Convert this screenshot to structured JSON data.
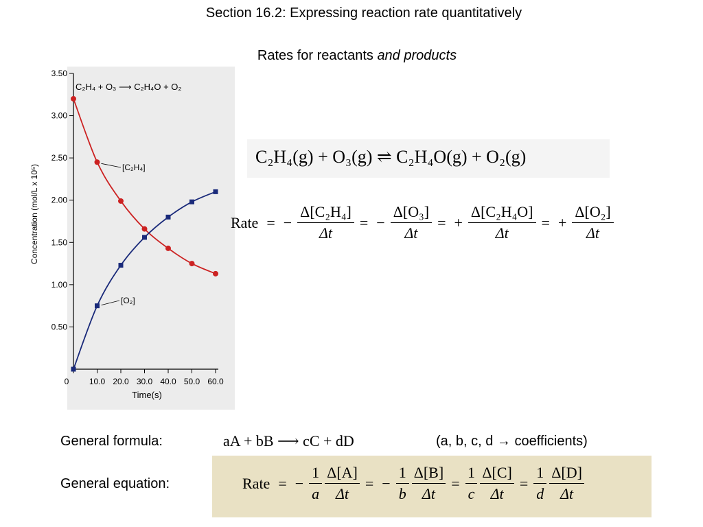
{
  "slide": {
    "title": "Section 16.2:  Expressing reaction rate quantitatively",
    "subtitle_plain": "Rates for reactants ",
    "subtitle_italic": "and products"
  },
  "chart_data": {
    "type": "line",
    "reaction_label": "C₂H₄ + O₃ ⟶ C₂H₄O + O₂",
    "xlabel": "Time(s)",
    "ylabel": "Concentration (mol/L x 10⁵)",
    "x_tick_labels": [
      "0",
      "10.0",
      "20.0",
      "30.0",
      "40.0",
      "50.0",
      "60.0"
    ],
    "y_tick_labels": [
      "0.50",
      "1.00",
      "1.50",
      "2.00",
      "2.50",
      "3.00",
      "3.50"
    ],
    "xlim": [
      0,
      60
    ],
    "ylim": [
      0,
      3.5
    ],
    "grid": false,
    "x": [
      0,
      10,
      20,
      30,
      40,
      50,
      60
    ],
    "series": [
      {
        "name": "[C₂H₄]",
        "color": "#cc2222",
        "marker": "circle",
        "values": [
          3.2,
          2.45,
          1.99,
          1.66,
          1.43,
          1.25,
          1.13
        ]
      },
      {
        "name": "[O₂]",
        "color": "#1a2a7a",
        "marker": "square",
        "values": [
          0.0,
          0.75,
          1.23,
          1.56,
          1.8,
          1.98,
          2.1
        ]
      }
    ]
  },
  "equations": {
    "reaction": "C₂H₄(g) + O₃(g) ⇌ C₂H₄O(g) + O₂(g)",
    "rate_word": "Rate",
    "rate_terms": [
      {
        "sign": "−",
        "num": "Δ[C₂H₄]",
        "den": "Δt"
      },
      {
        "sign": "−",
        "num": "Δ[O₃]",
        "den": "Δt"
      },
      {
        "sign": "+",
        "num": "Δ[C₂H₄O]",
        "den": "Δt"
      },
      {
        "sign": "+",
        "num": "Δ[O₂]",
        "den": "Δt"
      }
    ],
    "general_formula_label": "General formula:",
    "general_formula": "aA + bB ⟶ cC + dD",
    "coefficient_note": "(a, b, c, d → coefficients)",
    "general_equation_label": "General equation:",
    "general_terms": [
      {
        "sign": "−",
        "coef_num": "1",
        "coef_den": "a",
        "num": "Δ[A]",
        "den": "Δt"
      },
      {
        "sign": "−",
        "coef_num": "1",
        "coef_den": "b",
        "num": "Δ[B]",
        "den": "Δt"
      },
      {
        "sign": "",
        "coef_num": "1",
        "coef_den": "c",
        "num": "Δ[C]",
        "den": "Δt"
      },
      {
        "sign": "",
        "coef_num": "1",
        "coef_den": "d",
        "num": "Δ[D]",
        "den": "Δt"
      }
    ]
  }
}
